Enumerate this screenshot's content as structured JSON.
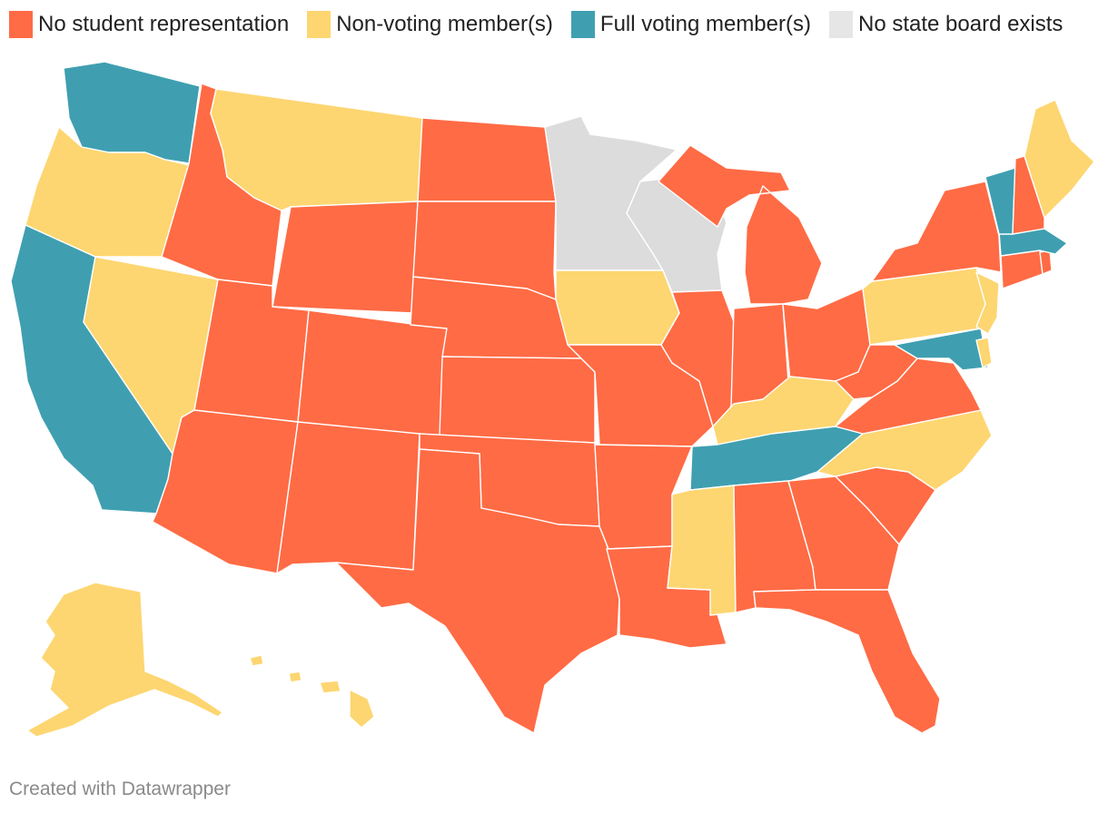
{
  "legend": [
    {
      "key": "none",
      "label": "No student representation",
      "color": "#ff6b45"
    },
    {
      "key": "nonvoting",
      "label": "Non-voting member(s)",
      "color": "#fdd671"
    },
    {
      "key": "voting",
      "label": "Full voting member(s)",
      "color": "#3f9fb0"
    },
    {
      "key": "noboard",
      "label": "No state board exists",
      "color": "#e6e6e6"
    }
  ],
  "colors": {
    "none": "#ff6b45",
    "nonvoting": "#fdd671",
    "voting": "#3f9fb0",
    "noboard": "#dcdcdc"
  },
  "states": {
    "WA": "voting",
    "OR": "nonvoting",
    "CA": "voting",
    "NV": "nonvoting",
    "ID": "none",
    "MT": "nonvoting",
    "WY": "none",
    "UT": "none",
    "AZ": "none",
    "CO": "none",
    "NM": "none",
    "ND": "none",
    "SD": "none",
    "NE": "none",
    "KS": "none",
    "OK": "none",
    "TX": "none",
    "MN": "noboard",
    "IA": "nonvoting",
    "MO": "none",
    "AR": "none",
    "LA": "none",
    "WI": "noboard",
    "IL": "none",
    "MI": "none",
    "IN": "none",
    "OH": "none",
    "KY": "nonvoting",
    "TN": "voting",
    "MS": "nonvoting",
    "AL": "none",
    "GA": "none",
    "FL": "none",
    "SC": "none",
    "NC": "nonvoting",
    "VA": "none",
    "WV": "none",
    "MD": "voting",
    "DE": "nonvoting",
    "PA": "nonvoting",
    "NJ": "nonvoting",
    "NY": "none",
    "CT": "none",
    "RI": "none",
    "MA": "voting",
    "VT": "voting",
    "NH": "none",
    "ME": "nonvoting",
    "AK": "nonvoting",
    "HI": "nonvoting"
  },
  "credit": "Created with Datawrapper"
}
